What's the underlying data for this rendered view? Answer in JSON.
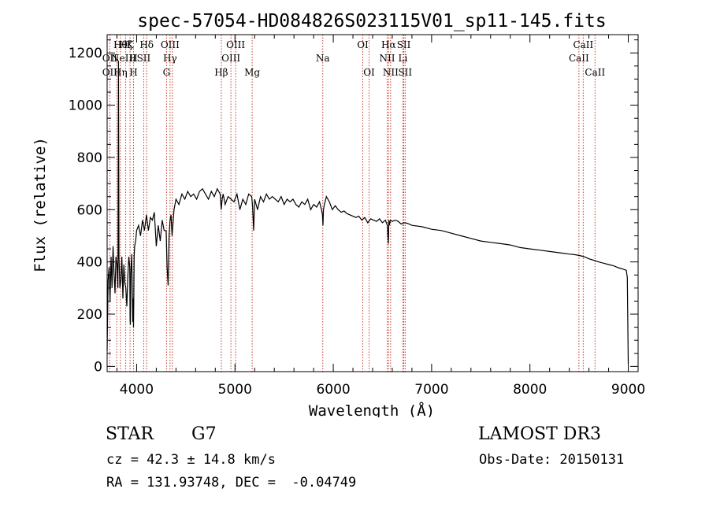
{
  "chart_data": {
    "type": "line",
    "title": "spec-57054-HD084826S023115V01_sp11-145.fits",
    "xlabel": "Wavelength (Å)",
    "ylabel": "Flux (relative)",
    "xlim": [
      3700,
      9100
    ],
    "ylim": [
      -20,
      1270
    ],
    "xticks": [
      4000,
      5000,
      6000,
      7000,
      8000,
      9000
    ],
    "yticks": [
      0,
      200,
      400,
      600,
      800,
      1000,
      1200
    ],
    "xtick_labels": [
      "4000",
      "5000",
      "6000",
      "7000",
      "8000",
      "9000"
    ],
    "ytick_labels": [
      "0",
      "200",
      "400",
      "600",
      "800",
      "1000",
      "1200"
    ],
    "series": [
      {
        "name": "spectrum",
        "x": [
          3700,
          3710,
          3720,
          3730,
          3740,
          3750,
          3760,
          3770,
          3780,
          3790,
          3800,
          3810,
          3815,
          3820,
          3830,
          3840,
          3850,
          3860,
          3870,
          3880,
          3890,
          3900,
          3910,
          3920,
          3930,
          3933,
          3936,
          3940,
          3950,
          3960,
          3965,
          3968,
          3971,
          3975,
          3980,
          3990,
          4000,
          4020,
          4040,
          4060,
          4080,
          4100,
          4120,
          4140,
          4160,
          4180,
          4200,
          4220,
          4240,
          4260,
          4280,
          4300,
          4310,
          4320,
          4330,
          4340,
          4350,
          4360,
          4380,
          4400,
          4430,
          4460,
          4490,
          4520,
          4550,
          4580,
          4610,
          4640,
          4670,
          4700,
          4730,
          4760,
          4790,
          4820,
          4850,
          4860,
          4870,
          4880,
          4900,
          4930,
          4960,
          4990,
          5020,
          5050,
          5080,
          5110,
          5140,
          5170,
          5180,
          5190,
          5200,
          5230,
          5260,
          5290,
          5320,
          5350,
          5380,
          5410,
          5440,
          5470,
          5500,
          5530,
          5560,
          5590,
          5620,
          5650,
          5680,
          5710,
          5740,
          5770,
          5800,
          5830,
          5860,
          5880,
          5890,
          5895,
          5900,
          5910,
          5930,
          5960,
          5990,
          6020,
          6050,
          6080,
          6110,
          6140,
          6170,
          6200,
          6230,
          6260,
          6290,
          6320,
          6350,
          6380,
          6410,
          6440,
          6470,
          6500,
          6530,
          6550,
          6560,
          6565,
          6570,
          6580,
          6600,
          6630,
          6660,
          6690,
          6720,
          6750,
          6800,
          6900,
          7000,
          7100,
          7200,
          7300,
          7400,
          7500,
          7600,
          7700,
          7800,
          7900,
          8000,
          8100,
          8200,
          8300,
          8400,
          8450,
          8500,
          8550,
          8600,
          8660,
          8700,
          8750,
          8800,
          8850,
          8900,
          8950,
          8980,
          8990,
          9000
        ],
        "values": [
          60,
          330,
          380,
          250,
          420,
          300,
          460,
          360,
          280,
          420,
          390,
          300,
          1170,
          420,
          300,
          330,
          420,
          260,
          390,
          320,
          300,
          230,
          340,
          420,
          380,
          180,
          160,
          350,
          430,
          170,
          260,
          150,
          240,
          420,
          460,
          480,
          520,
          540,
          500,
          560,
          520,
          580,
          520,
          570,
          560,
          590,
          460,
          540,
          480,
          560,
          520,
          520,
          380,
          310,
          500,
          560,
          580,
          500,
          600,
          640,
          620,
          660,
          640,
          670,
          650,
          660,
          640,
          670,
          680,
          660,
          640,
          670,
          650,
          680,
          660,
          600,
          640,
          660,
          620,
          650,
          640,
          630,
          660,
          600,
          640,
          620,
          660,
          650,
          610,
          520,
          640,
          600,
          650,
          630,
          660,
          640,
          650,
          640,
          630,
          650,
          620,
          640,
          630,
          640,
          620,
          610,
          630,
          620,
          640,
          600,
          620,
          610,
          630,
          600,
          580,
          540,
          600,
          620,
          650,
          630,
          600,
          615,
          600,
          590,
          595,
          585,
          580,
          575,
          570,
          575,
          560,
          570,
          550,
          565,
          560,
          555,
          565,
          550,
          560,
          540,
          470,
          560,
          540,
          560,
          555,
          560,
          555,
          545,
          550,
          548,
          540,
          535,
          525,
          520,
          510,
          500,
          490,
          480,
          475,
          470,
          465,
          455,
          450,
          445,
          440,
          435,
          430,
          428,
          425,
          420,
          412,
          405,
          400,
          395,
          390,
          385,
          378,
          372,
          368,
          340,
          10
        ]
      }
    ],
    "line_labels": [
      {
        "x": 3835,
        "row": 0,
        "text": "Hθ"
      },
      {
        "x": 3889,
        "row": 0,
        "text": "Hζ"
      },
      {
        "x": 3933,
        "row": 0,
        "text": "K"
      },
      {
        "x": 4102,
        "row": 0,
        "text": "Hδ"
      },
      {
        "x": 4340,
        "row": 0,
        "text": "OIII"
      },
      {
        "x": 5007,
        "row": 0,
        "text": "OIII"
      },
      {
        "x": 6300,
        "row": 0,
        "text": "OI"
      },
      {
        "x": 6563,
        "row": 0,
        "text": "Hα"
      },
      {
        "x": 6717,
        "row": 0,
        "text": "SII"
      },
      {
        "x": 8542,
        "row": 0,
        "text": "CaII"
      },
      {
        "x": 3727,
        "row": 1,
        "text": "OII"
      },
      {
        "x": 3869,
        "row": 1,
        "text": "NeIII"
      },
      {
        "x": 3968,
        "row": 1,
        "text": "H"
      },
      {
        "x": 4072,
        "row": 1,
        "text": "SII"
      },
      {
        "x": 4340,
        "row": 1,
        "text": "Hγ"
      },
      {
        "x": 4959,
        "row": 1,
        "text": "OIII"
      },
      {
        "x": 6548,
        "row": 1,
        "text": "NII"
      },
      {
        "x": 6708,
        "row": 1,
        "text": "Li"
      },
      {
        "x": 8498,
        "row": 1,
        "text": "CaII"
      },
      {
        "x": 3727,
        "row": 2,
        "text": "OII"
      },
      {
        "x": 3835,
        "row": 2,
        "text": "Hη"
      },
      {
        "x": 3968,
        "row": 2,
        "text": "H"
      },
      {
        "x": 4304,
        "row": 2,
        "text": "G"
      },
      {
        "x": 4861,
        "row": 2,
        "text": "Hβ"
      },
      {
        "x": 5175,
        "row": 2,
        "text": "Mg"
      },
      {
        "x": 5893,
        "row": 1,
        "text": "Na"
      },
      {
        "x": 6364,
        "row": 2,
        "text": "OI"
      },
      {
        "x": 6583,
        "row": 2,
        "text": "NII"
      },
      {
        "x": 6731,
        "row": 2,
        "text": "SII"
      },
      {
        "x": 8662,
        "row": 2,
        "text": "CaII"
      }
    ],
    "line_markers": [
      3727,
      3798,
      3835,
      3889,
      3933,
      3968,
      4072,
      4102,
      4304,
      4340,
      4363,
      4861,
      4959,
      5007,
      5175,
      5893,
      6300,
      6364,
      6548,
      6563,
      6583,
      6708,
      6717,
      6731,
      8498,
      8542,
      8662
    ]
  },
  "info": {
    "object_type": "STAR",
    "subclass": "G7",
    "survey": "LAMOST DR3",
    "redshift": "cz = 42.3 ± 14.8 km/s",
    "obs_date": "Obs-Date: 20150131",
    "coords": "RA = 131.93748, DEC =  -0.04749"
  },
  "colors": {
    "marker_line": "#c0392b",
    "spectrum": "#000000",
    "axis": "#000000"
  }
}
